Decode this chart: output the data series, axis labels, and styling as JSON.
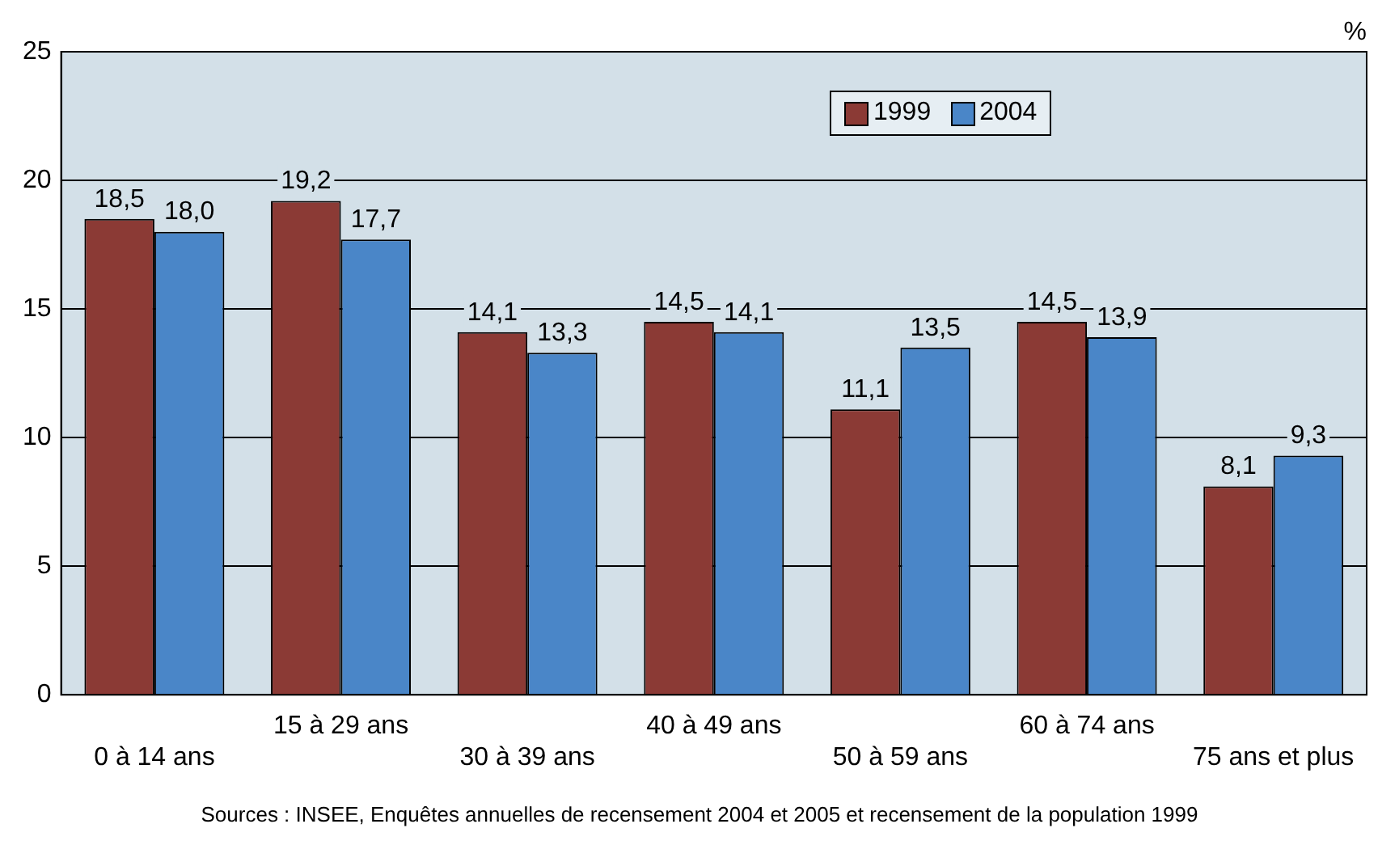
{
  "chart_data": {
    "type": "bar",
    "ylabel": "%",
    "categories": [
      "0 à 14 ans",
      "15 à 29 ans",
      "30 à 39 ans",
      "40 à 49 ans",
      "50 à 59 ans",
      "60 à 74 ans",
      "75 ans et plus"
    ],
    "series": [
      {
        "name": "1999",
        "color": "#8b3a35",
        "values": [
          18.5,
          19.2,
          14.1,
          14.5,
          11.1,
          14.5,
          8.1
        ],
        "value_labels": [
          "18,5",
          "19,2",
          "14,1",
          "14,5",
          "11,1",
          "14,5",
          "8,1"
        ]
      },
      {
        "name": "2004",
        "color": "#4a86c8",
        "values": [
          18.0,
          17.7,
          13.3,
          14.1,
          13.5,
          13.9,
          9.3
        ],
        "value_labels": [
          "18,0",
          "17,7",
          "13,3",
          "14,1",
          "13,5",
          "13,9",
          "9,3"
        ]
      }
    ],
    "ylim": [
      0,
      25
    ],
    "yticks": [
      0,
      5,
      10,
      15,
      20,
      25
    ],
    "grid": "y",
    "legend": "top right",
    "annotations": [
      "Sources : INSEE, Enquêtes annuelles de recensement 2004 et 2005 et recensement de la population 1999"
    ]
  }
}
